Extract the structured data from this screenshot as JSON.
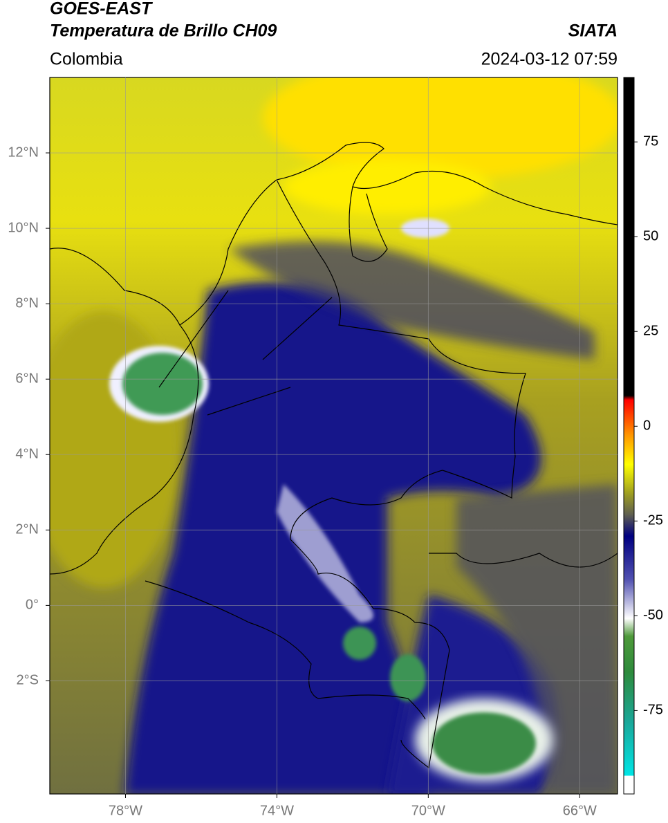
{
  "header": {
    "title": "GOES-EAST",
    "subtitle": "Temperatura de Brillo CH09",
    "source": "SIATA",
    "region": "Colombia",
    "datetime": "2024-03-12 07:59"
  },
  "map": {
    "xlim": [
      -80,
      -65
    ],
    "ylim": [
      -5,
      14
    ],
    "xticks": [
      {
        "value": -78,
        "label": "78°W"
      },
      {
        "value": -74,
        "label": "74°W"
      },
      {
        "value": -70,
        "label": "70°W"
      },
      {
        "value": -66,
        "label": "66°W"
      }
    ],
    "yticks": [
      {
        "value": 12,
        "label": "12°N"
      },
      {
        "value": 10,
        "label": "10°N"
      },
      {
        "value": 8,
        "label": "8°N"
      },
      {
        "value": 6,
        "label": "6°N"
      },
      {
        "value": 4,
        "label": "4°N"
      },
      {
        "value": 2,
        "label": "2°N"
      },
      {
        "value": 0,
        "label": "0°"
      },
      {
        "value": -2,
        "label": "2°S"
      }
    ],
    "grid": true
  },
  "colorbar": {
    "lim": [
      -97,
      92
    ],
    "ticks": [
      75,
      50,
      25,
      0,
      -25,
      -50,
      -75
    ]
  }
}
